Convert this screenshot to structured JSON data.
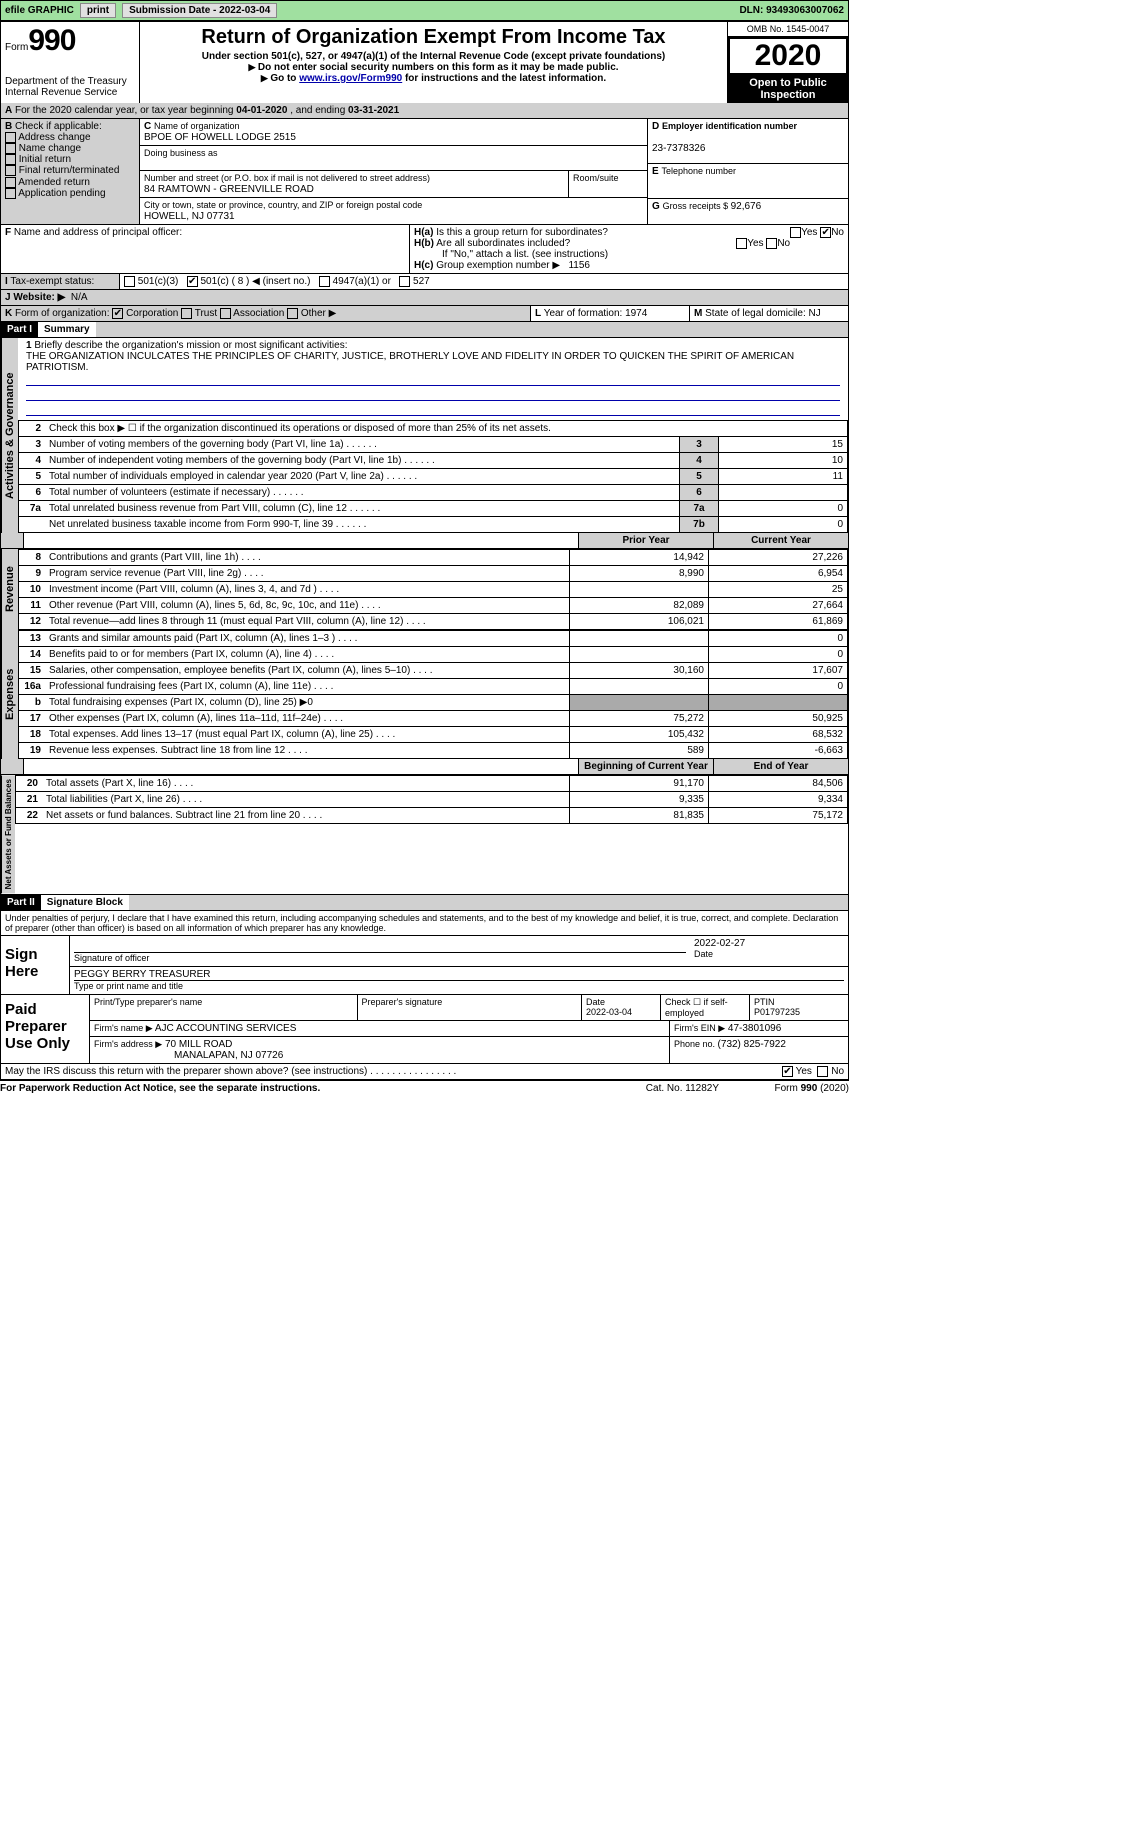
{
  "topbar": {
    "efile": "efile GRAPHIC",
    "print": "print",
    "sub_label": "Submission Date - ",
    "sub_date": "2022-03-04",
    "dln_label": "DLN: ",
    "dln": "93493063007062"
  },
  "header": {
    "form_label": "Form",
    "form_no": "990",
    "dept": "Department of the Treasury\nInternal Revenue Service",
    "title": "Return of Organization Exempt From Income Tax",
    "sub1": "Under section 501(c), 527, or 4947(a)(1) of the Internal Revenue Code (except private foundations)",
    "sub2": "Do not enter social security numbers on this form as it may be made public.",
    "sub3_pre": "Go to ",
    "sub3_link": "www.irs.gov/Form990",
    "sub3_post": " for instructions and the latest information.",
    "omb": "OMB No. 1545-0047",
    "year": "2020",
    "open": "Open to Public Inspection"
  },
  "period": {
    "line_pre": "For the 2020 calendar year, or tax year beginning ",
    "begin": "04-01-2020",
    "mid": " , and ending ",
    "end": "03-31-2021"
  },
  "boxB": {
    "label": "Check if applicable:",
    "opts": [
      "Address change",
      "Name change",
      "Initial return",
      "Final return/terminated",
      "Amended return",
      "Application pending"
    ]
  },
  "boxC": {
    "name_lbl": "Name of organization",
    "name": "BPOE OF HOWELL LODGE 2515",
    "dba_lbl": "Doing business as",
    "addr_lbl": "Number and street (or P.O. box if mail is not delivered to street address)",
    "room_lbl": "Room/suite",
    "addr": "84 RAMTOWN - GREENVILLE ROAD",
    "city_lbl": "City or town, state or province, country, and ZIP or foreign postal code",
    "city": "HOWELL, NJ  07731"
  },
  "boxD": {
    "lbl": "Employer identification number",
    "val": "23-7378326"
  },
  "boxE": {
    "lbl": "Telephone number",
    "val": ""
  },
  "boxG": {
    "lbl": "Gross receipts $ ",
    "val": "92,676"
  },
  "boxF": {
    "lbl": "Name and address of principal officer:"
  },
  "boxH": {
    "a": "Is this a group return for subordinates?",
    "a_no": true,
    "b": "Are all subordinates included?",
    "b_note": "If \"No,\" attach a list. (see instructions)",
    "c_lbl": "Group exemption number ▶",
    "c_val": "1156"
  },
  "boxI": {
    "lbl": "Tax-exempt status:",
    "c501c3": "501(c)(3)",
    "c501c": "501(c) ( 8 ) ◀ (insert no.)",
    "c4947": "4947(a)(1) or",
    "c527": "527"
  },
  "boxJ": {
    "lbl": "Website: ▶",
    "val": "N/A"
  },
  "boxK": {
    "lbl": "Form of organization:",
    "opts": [
      "Corporation",
      "Trust",
      "Association",
      "Other ▶"
    ],
    "checked": 0
  },
  "boxL": {
    "lbl": "Year of formation: ",
    "val": "1974"
  },
  "boxM": {
    "lbl": "State of legal domicile: ",
    "val": "NJ"
  },
  "part1_hdr": "Part I",
  "part1_title": "Summary",
  "mission": {
    "q": "Briefly describe the organization's mission or most significant activities:",
    "text": "THE ORGANIZATION INCULCATES THE PRINCIPLES OF CHARITY, JUSTICE, BROTHERLY LOVE AND FIDELITY IN ORDER TO QUICKEN THE SPIRIT OF AMERICAN PATRIOTISM."
  },
  "gov_rows": [
    {
      "n": "2",
      "t": "Check this box ▶ ☐ if the organization discontinued its operations or disposed of more than 25% of its net assets."
    },
    {
      "n": "3",
      "t": "Number of voting members of the governing body (Part VI, line 1a)",
      "k": "3",
      "v": "15"
    },
    {
      "n": "4",
      "t": "Number of independent voting members of the governing body (Part VI, line 1b)",
      "k": "4",
      "v": "10"
    },
    {
      "n": "5",
      "t": "Total number of individuals employed in calendar year 2020 (Part V, line 2a)",
      "k": "5",
      "v": "11"
    },
    {
      "n": "6",
      "t": "Total number of volunteers (estimate if necessary)",
      "k": "6",
      "v": ""
    },
    {
      "n": "7a",
      "t": "Total unrelated business revenue from Part VIII, column (C), line 12",
      "k": "7a",
      "v": "0"
    },
    {
      "n": "",
      "t": "Net unrelated business taxable income from Form 990-T, line 39",
      "k": "7b",
      "v": "0"
    }
  ],
  "col_hdrs": {
    "prior": "Prior Year",
    "current": "Current Year"
  },
  "rev_rows": [
    {
      "n": "8",
      "t": "Contributions and grants (Part VIII, line 1h)",
      "p": "14,942",
      "c": "27,226"
    },
    {
      "n": "9",
      "t": "Program service revenue (Part VIII, line 2g)",
      "p": "8,990",
      "c": "6,954"
    },
    {
      "n": "10",
      "t": "Investment income (Part VIII, column (A), lines 3, 4, and 7d )",
      "p": "",
      "c": "25"
    },
    {
      "n": "11",
      "t": "Other revenue (Part VIII, column (A), lines 5, 6d, 8c, 9c, 10c, and 11e)",
      "p": "82,089",
      "c": "27,664"
    },
    {
      "n": "12",
      "t": "Total revenue—add lines 8 through 11 (must equal Part VIII, column (A), line 12)",
      "p": "106,021",
      "c": "61,869"
    }
  ],
  "exp_rows": [
    {
      "n": "13",
      "t": "Grants and similar amounts paid (Part IX, column (A), lines 1–3 )",
      "p": "",
      "c": "0"
    },
    {
      "n": "14",
      "t": "Benefits paid to or for members (Part IX, column (A), line 4)",
      "p": "",
      "c": "0"
    },
    {
      "n": "15",
      "t": "Salaries, other compensation, employee benefits (Part IX, column (A), lines 5–10)",
      "p": "30,160",
      "c": "17,607"
    },
    {
      "n": "16a",
      "t": "Professional fundraising fees (Part IX, column (A), line 11e)",
      "p": "",
      "c": "0"
    },
    {
      "n": "b",
      "t": "Total fundraising expenses (Part IX, column (D), line 25) ▶0",
      "shade": true
    },
    {
      "n": "17",
      "t": "Other expenses (Part IX, column (A), lines 11a–11d, 11f–24e)",
      "p": "75,272",
      "c": "50,925"
    },
    {
      "n": "18",
      "t": "Total expenses. Add lines 13–17 (must equal Part IX, column (A), line 25)",
      "p": "105,432",
      "c": "68,532"
    },
    {
      "n": "19",
      "t": "Revenue less expenses. Subtract line 18 from line 12",
      "p": "589",
      "c": "-6,663"
    }
  ],
  "net_hdrs": {
    "begin": "Beginning of Current Year",
    "end": "End of Year"
  },
  "net_rows": [
    {
      "n": "20",
      "t": "Total assets (Part X, line 16)",
      "p": "91,170",
      "c": "84,506"
    },
    {
      "n": "21",
      "t": "Total liabilities (Part X, line 26)",
      "p": "9,335",
      "c": "9,334"
    },
    {
      "n": "22",
      "t": "Net assets or fund balances. Subtract line 21 from line 20",
      "p": "81,835",
      "c": "75,172"
    }
  ],
  "sections": {
    "gov": "Activities & Governance",
    "rev": "Revenue",
    "exp": "Expenses",
    "net": "Net Assets or Fund Balances"
  },
  "part2_hdr": "Part II",
  "part2_title": "Signature Block",
  "part2_text": "Under penalties of perjury, I declare that I have examined this return, including accompanying schedules and statements, and to the best of my knowledge and belief, it is true, correct, and complete. Declaration of preparer (other than officer) is based on all information of which preparer has any knowledge.",
  "sign": {
    "here": "Sign Here",
    "sig_lbl": "Signature of officer",
    "date_lbl": "Date",
    "date": "2022-02-27",
    "name": "PEGGY BERRY TREASURER",
    "name_lbl": "Type or print name and title"
  },
  "paid": {
    "lbl": "Paid Preparer Use Only",
    "cols": [
      "Print/Type preparer's name",
      "Preparer's signature",
      "Date",
      "Check ☐ if self-employed",
      "PTIN"
    ],
    "date": "2022-03-04",
    "ptin": "P01797235",
    "firm_lbl": "Firm's name ▶",
    "firm": "AJC ACCOUNTING SERVICES",
    "ein_lbl": "Firm's EIN ▶",
    "ein": "47-3801096",
    "addr_lbl": "Firm's address ▶",
    "addr1": "70 MILL ROAD",
    "addr2": "MANALAPAN, NJ  07726",
    "phone_lbl": "Phone no. ",
    "phone": "(732) 825-7922"
  },
  "discuss": {
    "t": "May the IRS discuss this return with the preparer shown above? (see instructions)",
    "yes": true
  },
  "footer": {
    "l": "For Paperwork Reduction Act Notice, see the separate instructions.",
    "c": "Cat. No. 11282Y",
    "r": "Form 990 (2020)"
  }
}
